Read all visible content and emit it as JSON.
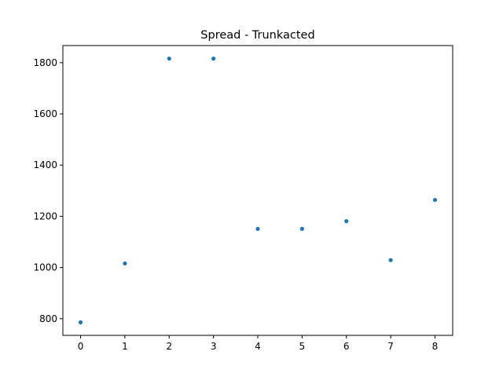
{
  "chart_data": {
    "type": "scatter",
    "title": "Spread - Trunkacted",
    "xlabel": "",
    "ylabel": "",
    "x": [
      0,
      1,
      2,
      3,
      4,
      5,
      6,
      7,
      8
    ],
    "y": [
      786,
      1016,
      1816,
      1816,
      1151,
      1151,
      1181,
      1029,
      1264
    ],
    "xlim": [
      -0.4,
      8.4
    ],
    "ylim": [
      735,
      1867
    ],
    "xticks": [
      0,
      1,
      2,
      3,
      4,
      5,
      6,
      7,
      8
    ],
    "yticks": [
      800,
      1000,
      1200,
      1400,
      1600,
      1800
    ],
    "grid": false,
    "legend": "none",
    "marker_color": "#1f77b4"
  }
}
